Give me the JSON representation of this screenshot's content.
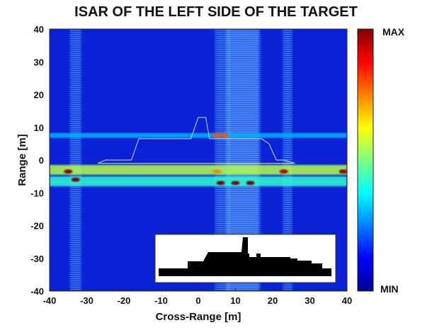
{
  "chart_data": {
    "type": "heatmap",
    "title": "ISAR OF THE LEFT SIDE OF THE TARGET",
    "xlabel": "Cross-Range [m]",
    "ylabel": "Range [m]",
    "xlim": [
      -40,
      40
    ],
    "ylim": [
      -40,
      40
    ],
    "x_ticks": [
      -40,
      -30,
      -20,
      -10,
      0,
      10,
      20,
      30,
      40
    ],
    "y_ticks": [
      40,
      30,
      20,
      10,
      0,
      -10,
      -20,
      -30,
      -40
    ],
    "colorbar": {
      "max_label": "MAX",
      "min_label": "MIN",
      "colormap": "jet"
    },
    "bright_bands_range_m": [
      -3,
      -6.5,
      7.5
    ],
    "bright_columns_cross_range_m": [
      -33,
      6.5,
      12,
      24
    ],
    "hotspots": [
      {
        "x": -35,
        "y": -3.5,
        "level": 1.0
      },
      {
        "x": -33,
        "y": -6,
        "level": 1.0
      },
      {
        "x": 6,
        "y": -7,
        "level": 1.0
      },
      {
        "x": 10,
        "y": -7,
        "level": 1.0
      },
      {
        "x": 14,
        "y": -7,
        "level": 1.0
      },
      {
        "x": 23,
        "y": -3.5,
        "level": 0.95
      },
      {
        "x": 39,
        "y": -3.5,
        "level": 1.0
      },
      {
        "x": 5,
        "y": 7.5,
        "level": 0.8
      },
      {
        "x": 7,
        "y": 7.5,
        "level": 0.8
      },
      {
        "x": 5,
        "y": -3.5,
        "level": 0.75
      }
    ],
    "target_outline_m": [
      [
        -27,
        -1
      ],
      [
        -25,
        0
      ],
      [
        -18,
        0
      ],
      [
        -16,
        6.5
      ],
      [
        -2,
        6.5
      ],
      [
        0,
        13
      ],
      [
        2,
        13
      ],
      [
        3,
        6.5
      ],
      [
        17,
        6.5
      ],
      [
        19,
        5
      ],
      [
        21,
        0
      ],
      [
        23,
        0
      ],
      [
        26,
        -1
      ]
    ],
    "inset": {
      "description_icon": "ship-silhouette-icon"
    }
  }
}
